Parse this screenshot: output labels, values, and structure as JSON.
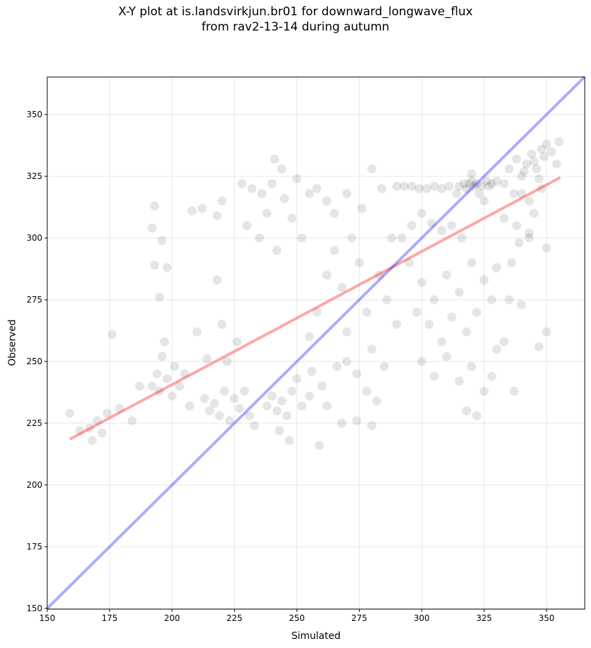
{
  "chart_data": {
    "type": "scatter",
    "title_line1": "X-Y plot at is.landsvirkjun.br01 for downward_longwave_flux",
    "title_line2": "from rav2-13-14 during autumn",
    "xlabel": "Simulated",
    "ylabel": "Observed",
    "xlim": [
      150,
      365.3
    ],
    "ylim": [
      149.7,
      365.2
    ],
    "xticks": [
      "150",
      "175",
      "200",
      "225",
      "250",
      "275",
      "300",
      "325",
      "350"
    ],
    "yticks": [
      "150",
      "175",
      "200",
      "225",
      "250",
      "275",
      "300",
      "325",
      "350"
    ],
    "grid": true,
    "colors": {
      "points": "#000000",
      "fit_line": "#ff0000",
      "identity_line": "#0000ff"
    },
    "fit_line": {
      "x": [
        159,
        355.5
      ],
      "y": [
        218.5,
        324.5
      ]
    },
    "identity_line": {
      "x": [
        150,
        365.3
      ],
      "y": [
        150,
        365.3
      ]
    },
    "points": [
      [
        159,
        229
      ],
      [
        163,
        222
      ],
      [
        167,
        223
      ],
      [
        168,
        218
      ],
      [
        170,
        226
      ],
      [
        172,
        221
      ],
      [
        174,
        229
      ],
      [
        176,
        261
      ],
      [
        179,
        231
      ],
      [
        184,
        226
      ],
      [
        187,
        240
      ],
      [
        192,
        240
      ],
      [
        194,
        245
      ],
      [
        195,
        238
      ],
      [
        196,
        252
      ],
      [
        198,
        243
      ],
      [
        200,
        236
      ],
      [
        201,
        248
      ],
      [
        203,
        240
      ],
      [
        205,
        245
      ],
      [
        207,
        232
      ],
      [
        193,
        289
      ],
      [
        193,
        313
      ],
      [
        192,
        304
      ],
      [
        196,
        299
      ],
      [
        195,
        276
      ],
      [
        198,
        288
      ],
      [
        197,
        258
      ],
      [
        213,
        235
      ],
      [
        215,
        230
      ],
      [
        217,
        233
      ],
      [
        219,
        228
      ],
      [
        221,
        238
      ],
      [
        223,
        226
      ],
      [
        225,
        235
      ],
      [
        227,
        231
      ],
      [
        229,
        238
      ],
      [
        231,
        228
      ],
      [
        233,
        224
      ],
      [
        222,
        250
      ],
      [
        226,
        258
      ],
      [
        218,
        283
      ],
      [
        220,
        265
      ],
      [
        214,
        251
      ],
      [
        210,
        262
      ],
      [
        208,
        311
      ],
      [
        212,
        312
      ],
      [
        218,
        309
      ],
      [
        220,
        315
      ],
      [
        228,
        322
      ],
      [
        232,
        320
      ],
      [
        236,
        318
      ],
      [
        240,
        322
      ],
      [
        245,
        316
      ],
      [
        250,
        324
      ],
      [
        255,
        318
      ],
      [
        230,
        305
      ],
      [
        235,
        300
      ],
      [
        238,
        310
      ],
      [
        242,
        295
      ],
      [
        248,
        308
      ],
      [
        252,
        300
      ],
      [
        241,
        332
      ],
      [
        244,
        328
      ],
      [
        258,
        320
      ],
      [
        262,
        315
      ],
      [
        238,
        232
      ],
      [
        240,
        236
      ],
      [
        242,
        230
      ],
      [
        244,
        234
      ],
      [
        246,
        228
      ],
      [
        248,
        238
      ],
      [
        250,
        243
      ],
      [
        252,
        232
      ],
      [
        243,
        222
      ],
      [
        247,
        218
      ],
      [
        255,
        236
      ],
      [
        256,
        246
      ],
      [
        260,
        240
      ],
      [
        262,
        232
      ],
      [
        259,
        216
      ],
      [
        255,
        260
      ],
      [
        258,
        270
      ],
      [
        262,
        285
      ],
      [
        265,
        295
      ],
      [
        268,
        280
      ],
      [
        270,
        262
      ],
      [
        272,
        300
      ],
      [
        275,
        290
      ],
      [
        278,
        270
      ],
      [
        280,
        255
      ],
      [
        283,
        285
      ],
      [
        286,
        275
      ],
      [
        288,
        300
      ],
      [
        290,
        265
      ],
      [
        266,
        248
      ],
      [
        270,
        250
      ],
      [
        274,
        245
      ],
      [
        278,
        238
      ],
      [
        282,
        234
      ],
      [
        285,
        248
      ],
      [
        268,
        225
      ],
      [
        274,
        226
      ],
      [
        280,
        224
      ],
      [
        265,
        310
      ],
      [
        270,
        318
      ],
      [
        276,
        312
      ],
      [
        280,
        328
      ],
      [
        284,
        320
      ],
      [
        290,
        321
      ],
      [
        293,
        321
      ],
      [
        296,
        321
      ],
      [
        299,
        320
      ],
      [
        302,
        320
      ],
      [
        305,
        321
      ],
      [
        308,
        320
      ],
      [
        311,
        321
      ],
      [
        300,
        310
      ],
      [
        304,
        306
      ],
      [
        308,
        303
      ],
      [
        312,
        305
      ],
      [
        316,
        300
      ],
      [
        296,
        305
      ],
      [
        292,
        300
      ],
      [
        314,
        318
      ],
      [
        317,
        322
      ],
      [
        320,
        323
      ],
      [
        322,
        322
      ],
      [
        324,
        321
      ],
      [
        326,
        323
      ],
      [
        328,
        322
      ],
      [
        330,
        323
      ],
      [
        333,
        322
      ],
      [
        318,
        320
      ],
      [
        320,
        326
      ],
      [
        323,
        318
      ],
      [
        325,
        315
      ],
      [
        321,
        321
      ],
      [
        319,
        322
      ],
      [
        327,
        321
      ],
      [
        315,
        321
      ],
      [
        295,
        290
      ],
      [
        300,
        282
      ],
      [
        305,
        275
      ],
      [
        310,
        285
      ],
      [
        315,
        278
      ],
      [
        320,
        290
      ],
      [
        325,
        283
      ],
      [
        330,
        288
      ],
      [
        298,
        270
      ],
      [
        303,
        265
      ],
      [
        308,
        258
      ],
      [
        312,
        268
      ],
      [
        318,
        262
      ],
      [
        322,
        270
      ],
      [
        328,
        275
      ],
      [
        335,
        275
      ],
      [
        340,
        273
      ],
      [
        300,
        250
      ],
      [
        305,
        244
      ],
      [
        310,
        252
      ],
      [
        315,
        242
      ],
      [
        320,
        248
      ],
      [
        325,
        238
      ],
      [
        330,
        255
      ],
      [
        333,
        258
      ],
      [
        318,
        230
      ],
      [
        322,
        228
      ],
      [
        328,
        244
      ],
      [
        337,
        238
      ],
      [
        335,
        328
      ],
      [
        338,
        332
      ],
      [
        340,
        325
      ],
      [
        342,
        330
      ],
      [
        344,
        334
      ],
      [
        346,
        328
      ],
      [
        348,
        336
      ],
      [
        350,
        338
      ],
      [
        352,
        335
      ],
      [
        354,
        330
      ],
      [
        340,
        318
      ],
      [
        343,
        315
      ],
      [
        338,
        305
      ],
      [
        345,
        310
      ],
      [
        348,
        320
      ],
      [
        355,
        339
      ],
      [
        339,
        298
      ],
      [
        343,
        300
      ],
      [
        347,
        256
      ],
      [
        350,
        262
      ],
      [
        350,
        296
      ],
      [
        336,
        290
      ],
      [
        343,
        302
      ],
      [
        337,
        318
      ],
      [
        333,
        308
      ],
      [
        341,
        327
      ],
      [
        345,
        331
      ],
      [
        349,
        333
      ],
      [
        347,
        324
      ]
    ]
  }
}
